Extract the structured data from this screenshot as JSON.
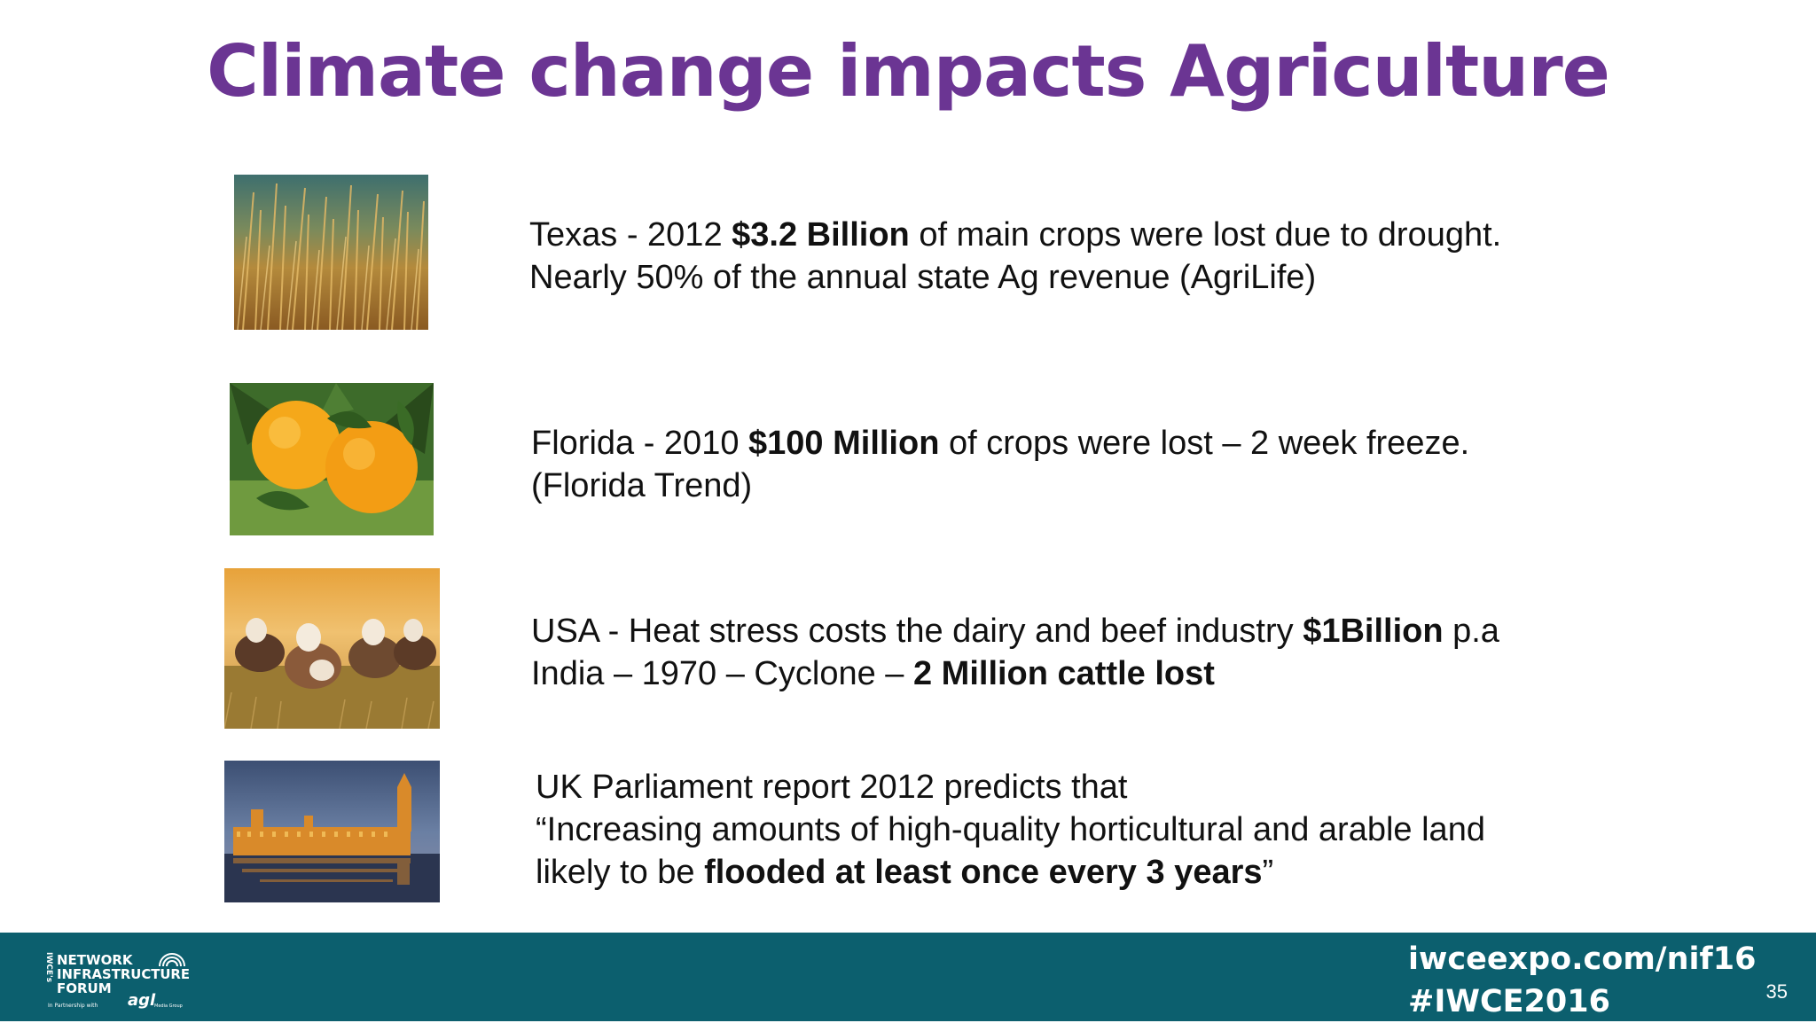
{
  "slide": {
    "title": "Climate change impacts Agriculture",
    "page_number": "35"
  },
  "items": [
    {
      "image": "wheat-field",
      "line1": {
        "a": "Texas - 2012 ",
        "b": "$3.2 Billion",
        "c": " of main crops were lost due to drought."
      },
      "line2": {
        "a": "Nearly 50% of the annual state Ag revenue (AgriLife)"
      }
    },
    {
      "image": "oranges",
      "line1": {
        "a": "Florida - 2010 ",
        "b": "$100 Million",
        "c": " of crops were lost – 2 week freeze."
      },
      "line2": {
        "a": "(Florida Trend)"
      }
    },
    {
      "image": "cattle",
      "line1": {
        "a": "USA - Heat stress costs the dairy and beef industry ",
        "b": "$1Billion",
        "c": " p.a"
      },
      "line2": {
        "a": "India – 1970 – Cyclone – ",
        "b": "2 Million cattle lost"
      }
    },
    {
      "image": "parliament",
      "line1": {
        "a": "UK Parliament report 2012 predicts that"
      },
      "line2": {
        "a": "“Increasing amounts of high-quality horticultural and arable land"
      },
      "line3": {
        "a": "likely to be ",
        "b": "flooded at least once every 3 years",
        "c": "”"
      }
    }
  ],
  "footer": {
    "url": "iwceexpo.com/nif16",
    "hashtag": "#IWCE2016",
    "logo": {
      "line1": "NETWORK",
      "line2": "INFRASTRUCTURE",
      "line3": "FORUM",
      "side": "IWCE's",
      "partner": "In Partnership with",
      "partner_brand": "agl",
      "partner_sub": "Media Group"
    }
  },
  "colors": {
    "title": "#6b3593",
    "footer_bg": "#0c5f6e",
    "body_text": "#111111"
  }
}
